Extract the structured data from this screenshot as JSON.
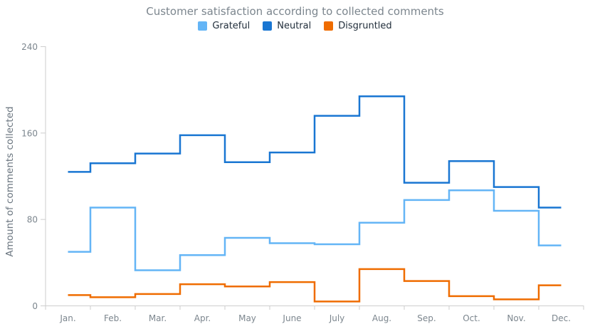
{
  "title": "Customer satisfaction according to collected comments",
  "legend": {
    "items": [
      {
        "label": "Grateful",
        "color": "#64b5f6"
      },
      {
        "label": "Neutral",
        "color": "#1976d2"
      },
      {
        "label": "Disgruntled",
        "color": "#ef6c00"
      }
    ]
  },
  "y_axis": {
    "title": "Amount of comments collected",
    "ticks": [
      0,
      80,
      160,
      240
    ]
  },
  "x_axis": {
    "labels": [
      "Jan.",
      "Feb.",
      "Mar.",
      "Apr.",
      "May",
      "June",
      "July",
      "Aug.",
      "Sep.",
      "Oct.",
      "Nov.",
      "Dec."
    ]
  },
  "colors": {
    "background": "#ffffff",
    "axis": "#cecece",
    "axis_label": "#7c868e",
    "title": "#7c868e",
    "legend_text": "#212e3b",
    "grateful": "#64b5f6",
    "neutral": "#1976d2",
    "disgruntled": "#ef6c00"
  },
  "chart_data": {
    "type": "line",
    "step": true,
    "step_mode": "middle",
    "title": "Customer satisfaction according to collected comments",
    "xlabel": "",
    "ylabel": "Amount of comments collected",
    "ylim": [
      0,
      240
    ],
    "grid": false,
    "legend_position": "top",
    "categories": [
      "Jan.",
      "Feb.",
      "Mar.",
      "Apr.",
      "May",
      "June",
      "July",
      "Aug.",
      "Sep.",
      "Oct.",
      "Nov.",
      "Dec."
    ],
    "series": [
      {
        "name": "Grateful",
        "color": "#64b5f6",
        "values": [
          50,
          91,
          33,
          47,
          63,
          58,
          57,
          77,
          98,
          107,
          88,
          56
        ]
      },
      {
        "name": "Neutral",
        "color": "#1976d2",
        "values": [
          124,
          132,
          141,
          158,
          133,
          142,
          176,
          194,
          114,
          134,
          110,
          91
        ]
      },
      {
        "name": "Disgruntled",
        "color": "#ef6c00",
        "values": [
          10,
          8,
          11,
          20,
          18,
          22,
          4,
          34,
          23,
          9,
          6,
          19
        ]
      }
    ]
  }
}
